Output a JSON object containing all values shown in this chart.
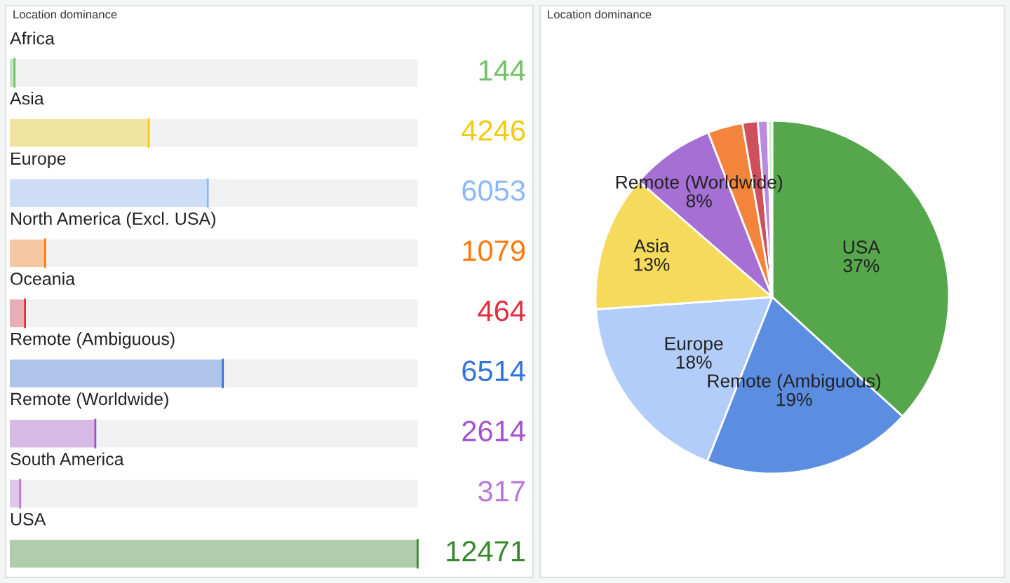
{
  "chart_data": [
    {
      "type": "bar",
      "title": "Location dominance",
      "orientation": "horizontal",
      "data_labels": true,
      "categories": [
        "Africa",
        "Asia",
        "Europe",
        "North America (Excl. USA)",
        "Oceania",
        "Remote (Ambiguous)",
        "Remote (Worldwide)",
        "South America",
        "USA"
      ],
      "values": [
        144,
        4246,
        6053,
        1079,
        464,
        6514,
        2614,
        317,
        12471
      ],
      "colors": [
        "#73bf69",
        "#f2cc0c",
        "#8ab8ff",
        "#ff780a",
        "#e02f44",
        "#3274d9",
        "#a352cc",
        "#b877d9",
        "#37872d"
      ]
    },
    {
      "type": "pie",
      "title": "Location dominance",
      "categories": [
        "USA",
        "Remote (Ambiguous)",
        "Europe",
        "Asia",
        "Remote (Worldwide)",
        null,
        null,
        null,
        null
      ],
      "values": [
        36.8,
        19.2,
        17.9,
        12.5,
        7.7,
        3.2,
        1.4,
        0.9,
        0.4
      ],
      "value_labels": [
        "37%",
        "19%",
        "18%",
        "13%",
        "8%",
        null,
        null,
        null,
        null
      ],
      "colors": [
        "#56a64b",
        "#5b8ee0",
        "#b3cdfa",
        "#f5da5b",
        "#a56fd4",
        "#f2843c",
        "#d04f5d",
        "#b98be0",
        "#c8f2c2"
      ]
    }
  ]
}
